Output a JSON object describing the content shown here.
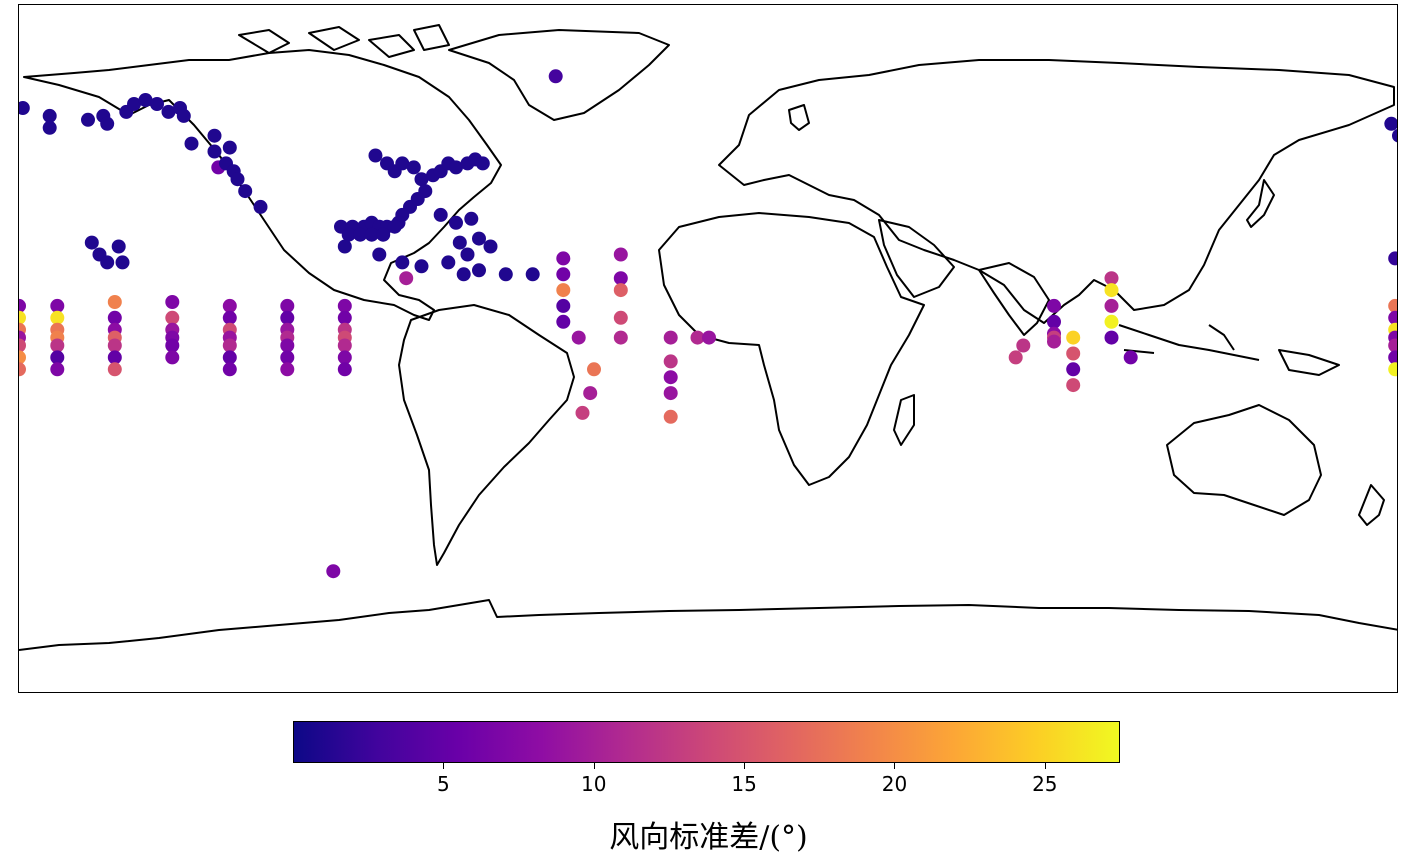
{
  "map": {
    "projection": "equirectangular",
    "extent": {
      "lon": [
        -180,
        180
      ],
      "lat": [
        -90,
        90
      ]
    },
    "land_style": "black coastline outlines on white"
  },
  "colorbar": {
    "label": "风向标准差/(°)",
    "colormap": "plasma",
    "colors": [
      "#0d0887",
      "#41049d",
      "#6a00a8",
      "#8f0da4",
      "#b12a90",
      "#cc4778",
      "#e16462",
      "#f2844b",
      "#fca636",
      "#fcce25",
      "#f0f921"
    ],
    "range": [
      0,
      27.5
    ],
    "ticks": [
      "5",
      "10",
      "15",
      "20",
      "25"
    ]
  },
  "chart_data": {
    "type": "scatter",
    "x_name": "longitude",
    "y_name": "latitude",
    "value_name": "风向标准差/(°)",
    "points": [
      {
        "lon": -179,
        "lat": 58,
        "v": 1
      },
      {
        "lon": -172,
        "lat": 56,
        "v": 1
      },
      {
        "lon": -172,
        "lat": 53,
        "v": 1
      },
      {
        "lon": -162,
        "lat": 55,
        "v": 1
      },
      {
        "lon": -158,
        "lat": 56,
        "v": 1
      },
      {
        "lon": -157,
        "lat": 54,
        "v": 1
      },
      {
        "lon": -152,
        "lat": 57,
        "v": 1
      },
      {
        "lon": -150,
        "lat": 59,
        "v": 1
      },
      {
        "lon": -147,
        "lat": 60,
        "v": 1
      },
      {
        "lon": -144,
        "lat": 59,
        "v": 1
      },
      {
        "lon": -141,
        "lat": 57,
        "v": 1
      },
      {
        "lon": -138,
        "lat": 58,
        "v": 1
      },
      {
        "lon": -137,
        "lat": 56,
        "v": 1
      },
      {
        "lon": -135,
        "lat": 49,
        "v": 1
      },
      {
        "lon": -129,
        "lat": 51,
        "v": 1
      },
      {
        "lon": -129,
        "lat": 47,
        "v": 1
      },
      {
        "lon": -128,
        "lat": 43,
        "v": 6
      },
      {
        "lon": -126,
        "lat": 44,
        "v": 1
      },
      {
        "lon": -125,
        "lat": 48,
        "v": 1
      },
      {
        "lon": -124,
        "lat": 42,
        "v": 1
      },
      {
        "lon": -123,
        "lat": 40,
        "v": 1
      },
      {
        "lon": -121,
        "lat": 37,
        "v": 1
      },
      {
        "lon": -117,
        "lat": 33,
        "v": 1
      },
      {
        "lon": -161,
        "lat": 24,
        "v": 1
      },
      {
        "lon": -159,
        "lat": 21,
        "v": 1
      },
      {
        "lon": -157,
        "lat": 19,
        "v": 1
      },
      {
        "lon": -154,
        "lat": 23,
        "v": 1
      },
      {
        "lon": -153,
        "lat": 19,
        "v": 1
      },
      {
        "lon": -180,
        "lat": 8,
        "v": 7
      },
      {
        "lon": -180,
        "lat": 5,
        "v": 26
      },
      {
        "lon": -180,
        "lat": 2,
        "v": 18
      },
      {
        "lon": -180,
        "lat": 0,
        "v": 9
      },
      {
        "lon": -180,
        "lat": -2,
        "v": 14
      },
      {
        "lon": -180,
        "lat": -5,
        "v": 20
      },
      {
        "lon": -180,
        "lat": -8,
        "v": 17
      },
      {
        "lon": -170,
        "lat": 8,
        "v": 7
      },
      {
        "lon": -170,
        "lat": 5,
        "v": 26
      },
      {
        "lon": -170,
        "lat": 2,
        "v": 18
      },
      {
        "lon": -170,
        "lat": 0,
        "v": 19
      },
      {
        "lon": -170,
        "lat": -2,
        "v": 12
      },
      {
        "lon": -170,
        "lat": -5,
        "v": 4
      },
      {
        "lon": -170,
        "lat": -8,
        "v": 7
      },
      {
        "lon": -155,
        "lat": 9,
        "v": 19
      },
      {
        "lon": -155,
        "lat": 5,
        "v": 6
      },
      {
        "lon": -155,
        "lat": 2,
        "v": 8
      },
      {
        "lon": -155,
        "lat": 0,
        "v": 16
      },
      {
        "lon": -155,
        "lat": -2,
        "v": 12
      },
      {
        "lon": -155,
        "lat": -5,
        "v": 5
      },
      {
        "lon": -155,
        "lat": -8,
        "v": 15
      },
      {
        "lon": -140,
        "lat": 9,
        "v": 7
      },
      {
        "lon": -140,
        "lat": 5,
        "v": 14
      },
      {
        "lon": -140,
        "lat": 2,
        "v": 9
      },
      {
        "lon": -140,
        "lat": 0,
        "v": 7
      },
      {
        "lon": -140,
        "lat": -2,
        "v": 6
      },
      {
        "lon": -140,
        "lat": -5,
        "v": 7
      },
      {
        "lon": -125,
        "lat": 8,
        "v": 8
      },
      {
        "lon": -125,
        "lat": 5,
        "v": 6
      },
      {
        "lon": -125,
        "lat": 2,
        "v": 14
      },
      {
        "lon": -125,
        "lat": 0,
        "v": 9
      },
      {
        "lon": -125,
        "lat": -2,
        "v": 11
      },
      {
        "lon": -125,
        "lat": -5,
        "v": 5
      },
      {
        "lon": -125,
        "lat": -8,
        "v": 6
      },
      {
        "lon": -110,
        "lat": 8,
        "v": 7
      },
      {
        "lon": -110,
        "lat": 5,
        "v": 5
      },
      {
        "lon": -110,
        "lat": 2,
        "v": 9
      },
      {
        "lon": -110,
        "lat": 0,
        "v": 11
      },
      {
        "lon": -110,
        "lat": -2,
        "v": 7
      },
      {
        "lon": -110,
        "lat": -5,
        "v": 6
      },
      {
        "lon": -110,
        "lat": -8,
        "v": 8
      },
      {
        "lon": -95,
        "lat": 8,
        "v": 7
      },
      {
        "lon": -95,
        "lat": 5,
        "v": 6
      },
      {
        "lon": -95,
        "lat": 2,
        "v": 12
      },
      {
        "lon": -95,
        "lat": 0,
        "v": 14
      },
      {
        "lon": -95,
        "lat": -2,
        "v": 11
      },
      {
        "lon": -95,
        "lat": -5,
        "v": 7
      },
      {
        "lon": -95,
        "lat": -8,
        "v": 6
      },
      {
        "lon": -87,
        "lat": 46,
        "v": 1
      },
      {
        "lon": -84,
        "lat": 44,
        "v": 1
      },
      {
        "lon": -82,
        "lat": 42,
        "v": 1
      },
      {
        "lon": -80,
        "lat": 44,
        "v": 1
      },
      {
        "lon": -77,
        "lat": 43,
        "v": 1
      },
      {
        "lon": -75,
        "lat": 40,
        "v": 1
      },
      {
        "lon": -72,
        "lat": 41,
        "v": 1
      },
      {
        "lon": -70,
        "lat": 42,
        "v": 1
      },
      {
        "lon": -68,
        "lat": 44,
        "v": 1
      },
      {
        "lon": -66,
        "lat": 43,
        "v": 1
      },
      {
        "lon": -63,
        "lat": 44,
        "v": 1
      },
      {
        "lon": -61,
        "lat": 45,
        "v": 1
      },
      {
        "lon": -59,
        "lat": 44,
        "v": 1
      },
      {
        "lon": -74,
        "lat": 37,
        "v": 1
      },
      {
        "lon": -76,
        "lat": 35,
        "v": 1
      },
      {
        "lon": -78,
        "lat": 33,
        "v": 1
      },
      {
        "lon": -80,
        "lat": 31,
        "v": 1
      },
      {
        "lon": -81,
        "lat": 29,
        "v": 1
      },
      {
        "lon": -70,
        "lat": 31,
        "v": 1
      },
      {
        "lon": -66,
        "lat": 29,
        "v": 1
      },
      {
        "lon": -62,
        "lat": 30,
        "v": 1
      },
      {
        "lon": -60,
        "lat": 25,
        "v": 1
      },
      {
        "lon": -57,
        "lat": 23,
        "v": 1
      },
      {
        "lon": -65,
        "lat": 24,
        "v": 1
      },
      {
        "lon": -63,
        "lat": 21,
        "v": 1
      },
      {
        "lon": -96,
        "lat": 28,
        "v": 1
      },
      {
        "lon": -93,
        "lat": 28,
        "v": 1
      },
      {
        "lon": -90,
        "lat": 28,
        "v": 1
      },
      {
        "lon": -88,
        "lat": 29,
        "v": 1
      },
      {
        "lon": -86,
        "lat": 28,
        "v": 1
      },
      {
        "lon": -84,
        "lat": 28,
        "v": 1
      },
      {
        "lon": -82,
        "lat": 28,
        "v": 1
      },
      {
        "lon": -94,
        "lat": 26,
        "v": 1
      },
      {
        "lon": -91,
        "lat": 26,
        "v": 1
      },
      {
        "lon": -88,
        "lat": 26,
        "v": 1
      },
      {
        "lon": -85,
        "lat": 26,
        "v": 1
      },
      {
        "lon": -95,
        "lat": 23,
        "v": 1
      },
      {
        "lon": -86,
        "lat": 21,
        "v": 1
      },
      {
        "lon": -80,
        "lat": 19,
        "v": 1
      },
      {
        "lon": -75,
        "lat": 18,
        "v": 1
      },
      {
        "lon": -68,
        "lat": 19,
        "v": 1
      },
      {
        "lon": -64,
        "lat": 16,
        "v": 1
      },
      {
        "lon": -60,
        "lat": 17,
        "v": 1
      },
      {
        "lon": -53,
        "lat": 16,
        "v": 1
      },
      {
        "lon": -46,
        "lat": 16,
        "v": 1
      },
      {
        "lon": -79,
        "lat": 15,
        "v": 10
      },
      {
        "lon": -40,
        "lat": 66,
        "v": 3
      },
      {
        "lon": -98,
        "lat": -59,
        "v": 7
      },
      {
        "lon": -38,
        "lat": 20,
        "v": 7
      },
      {
        "lon": -38,
        "lat": 16,
        "v": 6
      },
      {
        "lon": -38,
        "lat": 12,
        "v": 19
      },
      {
        "lon": -38,
        "lat": 8,
        "v": 4
      },
      {
        "lon": -38,
        "lat": 4,
        "v": 5
      },
      {
        "lon": -34,
        "lat": 0,
        "v": 9
      },
      {
        "lon": -30,
        "lat": -8,
        "v": 18
      },
      {
        "lon": -31,
        "lat": -14,
        "v": 10
      },
      {
        "lon": -33,
        "lat": -19,
        "v": 13
      },
      {
        "lon": -23,
        "lat": 21,
        "v": 9
      },
      {
        "lon": -23,
        "lat": 15,
        "v": 7
      },
      {
        "lon": -23,
        "lat": 12,
        "v": 16
      },
      {
        "lon": -23,
        "lat": 5,
        "v": 14
      },
      {
        "lon": -23,
        "lat": 0,
        "v": 11
      },
      {
        "lon": -10,
        "lat": 0,
        "v": 10
      },
      {
        "lon": -10,
        "lat": -6,
        "v": 12
      },
      {
        "lon": -10,
        "lat": -10,
        "v": 8
      },
      {
        "lon": -10,
        "lat": -14,
        "v": 9
      },
      {
        "lon": -10,
        "lat": -20,
        "v": 17
      },
      {
        "lon": -3,
        "lat": 0,
        "v": 11
      },
      {
        "lon": 0,
        "lat": 0,
        "v": 9
      },
      {
        "lon": 80,
        "lat": -5,
        "v": 13
      },
      {
        "lon": 82,
        "lat": -2,
        "v": 12
      },
      {
        "lon": 90,
        "lat": 8,
        "v": 7
      },
      {
        "lon": 90,
        "lat": 4,
        "v": 5
      },
      {
        "lon": 90,
        "lat": 1,
        "v": 8
      },
      {
        "lon": 90,
        "lat": 0,
        "v": 13
      },
      {
        "lon": 90,
        "lat": -1,
        "v": 10
      },
      {
        "lon": 95,
        "lat": 0,
        "v": 25
      },
      {
        "lon": 95,
        "lat": -4,
        "v": 15
      },
      {
        "lon": 95,
        "lat": -8,
        "v": 5
      },
      {
        "lon": 95,
        "lat": -12,
        "v": 14
      },
      {
        "lon": 105,
        "lat": 15,
        "v": 12
      },
      {
        "lon": 105,
        "lat": 12,
        "v": 26
      },
      {
        "lon": 105,
        "lat": 8,
        "v": 10
      },
      {
        "lon": 105,
        "lat": 4,
        "v": 27
      },
      {
        "lon": 105,
        "lat": 0,
        "v": 5
      },
      {
        "lon": 110,
        "lat": -5,
        "v": 6
      },
      {
        "lon": 178,
        "lat": 54,
        "v": 1
      },
      {
        "lon": 180,
        "lat": 51,
        "v": 1
      },
      {
        "lon": 179,
        "lat": 20,
        "v": 2
      },
      {
        "lon": 179,
        "lat": 8,
        "v": 18
      },
      {
        "lon": 179,
        "lat": 5,
        "v": 7
      },
      {
        "lon": 179,
        "lat": 2,
        "v": 26
      },
      {
        "lon": 179,
        "lat": 0,
        "v": 7
      },
      {
        "lon": 179,
        "lat": -2,
        "v": 10
      },
      {
        "lon": 179,
        "lat": -5,
        "v": 6
      },
      {
        "lon": 179,
        "lat": -8,
        "v": 27
      }
    ]
  }
}
